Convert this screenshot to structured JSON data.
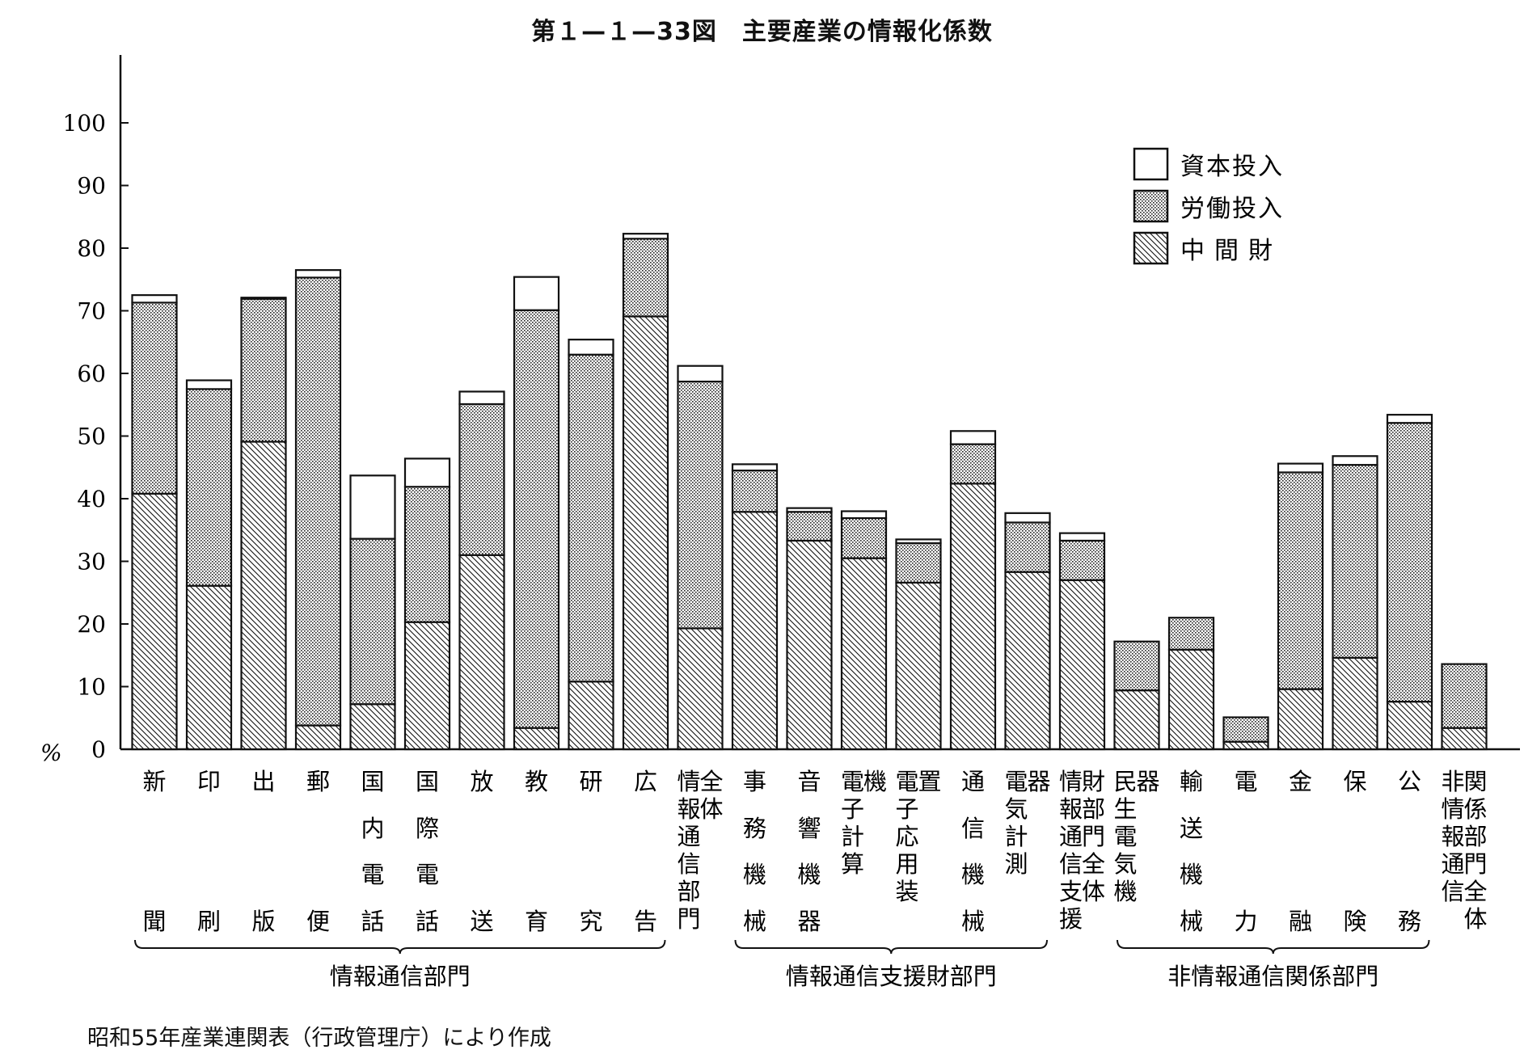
{
  "title": "第１—１—33図　主要産業の情報化係数",
  "source": "昭和55年産業連関表（行政管理庁）により作成",
  "chart_data": {
    "type": "bar",
    "stacked": true,
    "y_unit": "%",
    "ylim": [
      0,
      100
    ],
    "yticks": [
      0,
      10,
      20,
      30,
      40,
      50,
      60,
      70,
      80,
      90,
      100
    ],
    "legend_position": "top-right",
    "categories": [
      "新聞",
      "印刷",
      "出版",
      "郵便",
      "国内電話",
      "国際電話",
      "放送",
      "教育",
      "研究",
      "広告",
      "全情報通信部門体",
      "事務機械",
      "音響機器",
      "電子計算機",
      "電子応用装置",
      "通信機械",
      "電気計測器",
      "財部門全体情報通信支援",
      "民生電気機器",
      "輸送機械",
      "電力",
      "金融",
      "保険",
      "公務",
      "関係部門全体非情報通信"
    ],
    "category_lines": [
      [
        [
          "新"
        ],
        [
          "聞"
        ]
      ],
      [
        [
          "印"
        ],
        [
          "刷"
        ]
      ],
      [
        [
          "出"
        ],
        [
          "版"
        ]
      ],
      [
        [
          "郵"
        ],
        [
          "便"
        ]
      ],
      [
        [
          "国",
          "内",
          "電"
        ],
        [
          "話"
        ]
      ],
      [
        [
          "国",
          "際",
          "電"
        ],
        [
          "話"
        ]
      ],
      [
        [
          "放"
        ],
        [
          "送"
        ]
      ],
      [
        [
          "教"
        ],
        [
          "育"
        ]
      ],
      [
        [
          "研"
        ],
        [
          "究"
        ]
      ],
      [
        [
          "広"
        ],
        [
          "告"
        ]
      ],
      [
        [
          "情",
          "報",
          "通",
          "信",
          "部",
          "門"
        ],
        [
          "全",
          "体"
        ]
      ],
      [
        [
          "事",
          "務",
          "機"
        ],
        [
          "械"
        ]
      ],
      [
        [
          "音",
          "響",
          "機"
        ],
        [
          "器"
        ]
      ],
      [
        [
          "電",
          "子",
          "計",
          "算"
        ],
        [
          "機"
        ]
      ],
      [
        [
          "電",
          "子",
          "応",
          "用",
          "装"
        ],
        [
          "置"
        ]
      ],
      [
        [
          "通",
          "信",
          "機"
        ],
        [
          "械"
        ]
      ],
      [
        [
          "電",
          "気",
          "計",
          "測"
        ],
        [
          "器"
        ]
      ],
      [
        [
          "情",
          "報",
          "通",
          "信",
          "支",
          "援"
        ],
        [
          "財",
          "部",
          "門",
          "全",
          "体"
        ]
      ],
      [
        [
          "民",
          "生",
          "電",
          "気",
          "機"
        ],
        [
          "器"
        ]
      ],
      [
        [
          "輸",
          "送",
          "機"
        ],
        [
          "械"
        ]
      ],
      [
        [
          "電"
        ],
        [
          "力"
        ]
      ],
      [
        [
          "金"
        ],
        [
          "融"
        ]
      ],
      [
        [
          "保"
        ],
        [
          "険"
        ]
      ],
      [
        [
          "公"
        ],
        [
          "務"
        ]
      ],
      [
        [
          "非",
          "情",
          "報",
          "通",
          "信"
        ],
        [
          "関",
          "係",
          "部",
          "門",
          "全",
          "体"
        ]
      ]
    ],
    "series": [
      {
        "name": "中間財",
        "pattern": "hatch",
        "values": [
          40.8,
          26.1,
          49.1,
          3.8,
          7.2,
          20.3,
          31.0,
          3.4,
          10.8,
          69.1,
          19.3,
          37.9,
          33.3,
          30.5,
          26.6,
          42.4,
          28.3,
          27.0,
          9.4,
          15.9,
          1.2,
          9.6,
          14.6,
          7.6,
          3.4
        ]
      },
      {
        "name": "労働投入",
        "pattern": "dots",
        "values": [
          30.5,
          31.4,
          22.8,
          71.5,
          26.4,
          21.6,
          24.1,
          66.7,
          52.2,
          12.4,
          39.4,
          6.6,
          4.6,
          6.4,
          6.3,
          6.3,
          7.9,
          6.3,
          7.8,
          5.1,
          3.9,
          34.6,
          30.8,
          44.5,
          10.2
        ]
      },
      {
        "name": "資本投入",
        "pattern": "blank",
        "values": [
          1.2,
          1.4,
          0.2,
          1.2,
          10.1,
          4.5,
          2.0,
          5.3,
          2.4,
          0.8,
          2.5,
          1.0,
          0.6,
          1.1,
          0.6,
          2.1,
          1.5,
          1.2,
          0.0,
          0.0,
          0.0,
          1.4,
          1.4,
          1.3,
          0.0
        ]
      }
    ],
    "groups": [
      {
        "label": "情報通信部門",
        "from": 0,
        "to": 9
      },
      {
        "label": "情報通信支援財部門",
        "from": 11,
        "to": 16
      },
      {
        "label": "非情報通信関係部門",
        "from": 18,
        "to": 23
      }
    ],
    "legend": [
      {
        "label": "資本投入",
        "pattern": "blank"
      },
      {
        "label": "労働投入",
        "pattern": "dots"
      },
      {
        "label": "中間財",
        "pattern": "hatch"
      }
    ]
  }
}
